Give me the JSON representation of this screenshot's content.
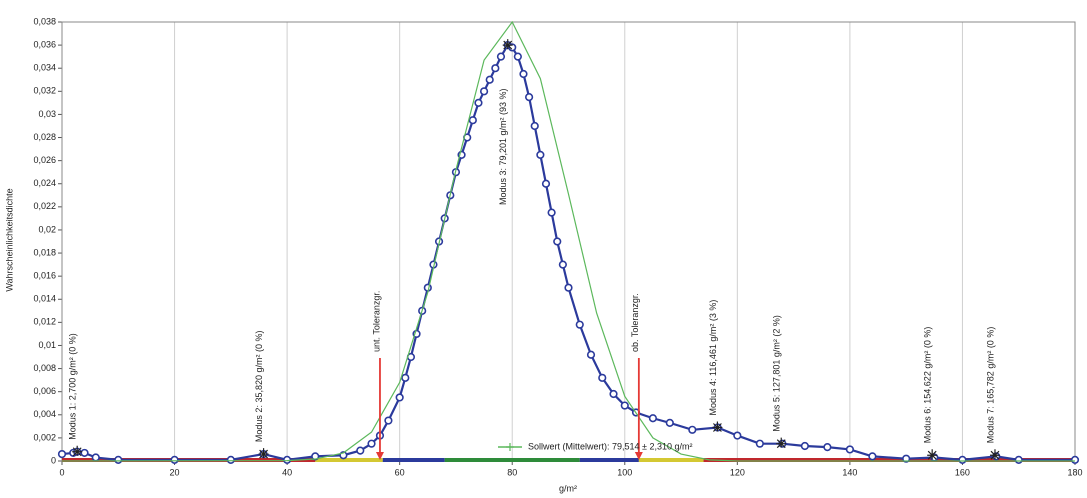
{
  "chart_data": {
    "type": "line",
    "ylabel": "Wahrscheinlichkeitsdichte",
    "xlabel": "g/m²",
    "xlim": [
      0,
      180
    ],
    "xticks": [
      0,
      20,
      40,
      60,
      80,
      100,
      120,
      140,
      160,
      180
    ],
    "ylim": [
      0,
      0.038
    ],
    "yticks": [
      0,
      {
        "value": 0.002,
        "label": "0,002"
      },
      {
        "value": 0.004,
        "label": "0,004"
      },
      {
        "value": 0.006,
        "label": "0,006"
      },
      {
        "value": 0.008,
        "label": "0,008"
      },
      {
        "value": 0.01,
        "label": "0,01"
      },
      {
        "value": 0.012,
        "label": "0,012"
      },
      {
        "value": 0.014,
        "label": "0,014"
      },
      {
        "value": 0.016,
        "label": "0,016"
      },
      {
        "value": 0.018,
        "label": "0,018"
      },
      {
        "value": 0.02,
        "label": "0,02"
      },
      {
        "value": 0.022,
        "label": "0,022"
      },
      {
        "value": 0.024,
        "label": "0,024"
      },
      {
        "value": 0.026,
        "label": "0,026"
      },
      {
        "value": 0.028,
        "label": "0,028"
      },
      {
        "value": 0.03,
        "label": "0,03"
      },
      {
        "value": 0.032,
        "label": "0,032"
      },
      {
        "value": 0.034,
        "label": "0,034"
      },
      {
        "value": 0.036,
        "label": "0,036"
      },
      {
        "value": 0.038,
        "label": "0,038"
      }
    ],
    "grid": true,
    "series": [
      {
        "color": "#2b3a9c",
        "x": [
          0,
          2,
          2.7,
          4,
          6,
          10,
          20,
          30,
          35.8,
          40,
          45,
          50,
          53,
          55,
          56.5,
          58,
          60,
          61,
          62,
          63,
          64,
          65,
          66,
          67,
          68,
          69,
          70,
          71,
          72,
          73,
          74,
          75,
          76,
          77,
          78,
          79.2,
          80,
          81,
          82,
          83,
          84,
          85,
          86,
          87,
          88,
          89,
          90,
          92,
          94,
          96,
          98,
          100,
          102,
          105,
          108,
          112,
          116.5,
          120,
          124,
          128,
          132,
          136,
          140,
          144,
          150,
          155,
          160,
          166,
          170,
          180
        ],
        "values": [
          0.0006,
          0.0007,
          0.0008,
          0.0007,
          0.0003,
          0.0001,
          0.0001,
          0.0001,
          0.0006,
          0.0001,
          0.0004,
          0.0005,
          0.0009,
          0.0015,
          0.0022,
          0.0035,
          0.0055,
          0.0072,
          0.009,
          0.011,
          0.013,
          0.015,
          0.017,
          0.019,
          0.021,
          0.023,
          0.025,
          0.0265,
          0.028,
          0.0295,
          0.031,
          0.032,
          0.033,
          0.034,
          0.035,
          0.036,
          0.0358,
          0.035,
          0.0335,
          0.0315,
          0.029,
          0.0265,
          0.024,
          0.0215,
          0.019,
          0.017,
          0.015,
          0.0118,
          0.0092,
          0.0072,
          0.0058,
          0.0048,
          0.0042,
          0.0037,
          0.0033,
          0.0027,
          0.0029,
          0.0022,
          0.0015,
          0.0015,
          0.0013,
          0.0012,
          0.001,
          0.0004,
          0.0002,
          0.0003,
          0.0001,
          0.0004,
          0.0001,
          0.0001
        ]
      },
      {
        "name": "Sollwert (Mittelwert): 79,514 ± 2,310 g/m²",
        "color": "#5cb85c",
        "x": [
          0,
          40,
          45,
          50,
          55,
          60,
          65,
          70,
          75,
          80,
          85,
          90,
          95,
          100,
          105,
          110,
          115,
          120,
          180
        ],
        "values": [
          0,
          3e-05,
          0.00017,
          0.0007,
          0.0025,
          0.0068,
          0.0146,
          0.0252,
          0.0347,
          0.038,
          0.0331,
          0.0231,
          0.0128,
          0.0056,
          0.002,
          0.0006,
          0.0001,
          0,
          0
        ]
      }
    ],
    "modes": [
      {
        "text": "Modus 1: 2,700 g/m² (0 %)",
        "x": 2.7,
        "y": 0.0008
      },
      {
        "text": "Modus 2: 35,820 g/m² (0 %)",
        "x": 35.82,
        "y": 0.0006
      },
      {
        "text": "Modus 3: 79,201 g/m² (93 %)",
        "x": 79.201,
        "y": 0.036
      },
      {
        "text": "Modus 4: 116,461 g/m² (3 %)",
        "x": 116.461,
        "y": 0.0029
      },
      {
        "text": "Modus 5: 127,801 g/m² (2 %)",
        "x": 127.801,
        "y": 0.0015
      },
      {
        "text": "Modus 6: 154,622 g/m² (0 %)",
        "x": 154.622,
        "y": 0.0005
      },
      {
        "text": "Modus 7: 165,782 g/m² (0 %)",
        "x": 165.782,
        "y": 0.0005
      }
    ],
    "tolerances": [
      {
        "label": "unt. Toleranzgr.",
        "x": 56.5
      },
      {
        "label": "ob. Toleranzgr.",
        "x": 102.5
      }
    ],
    "zones": [
      {
        "from": 0,
        "to": 45,
        "color": "#c0282d"
      },
      {
        "from": 45,
        "to": 57,
        "color": "#d4c832"
      },
      {
        "from": 57,
        "to": 68,
        "color": "#2b3a9c"
      },
      {
        "from": 68,
        "to": 92,
        "color": "#2e8b3a"
      },
      {
        "from": 92,
        "to": 102.5,
        "color": "#2b3a9c"
      },
      {
        "from": 102.5,
        "to": 114,
        "color": "#d4c832"
      },
      {
        "from": 114,
        "to": 180,
        "color": "#c0282d"
      }
    ]
  }
}
